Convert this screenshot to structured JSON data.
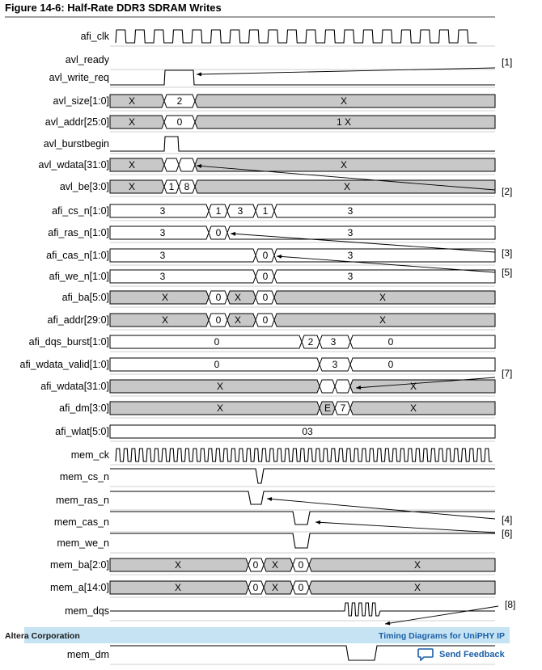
{
  "figure": {
    "title": "Figure 14-6: Half-Rate DDR3 SDRAM Writes"
  },
  "colors": {
    "bus_fill": "#c8c8c8",
    "line": "#000000",
    "banner": "#c5e3f3",
    "link": "#1a5fa8"
  },
  "signals": [
    {
      "name": "afi_clk",
      "type": "clock"
    },
    {
      "name": "avl_ready",
      "type": "none"
    },
    {
      "name": "avl_write_req",
      "type": "pulse"
    },
    {
      "name": "avl_size[1:0]",
      "type": "bus",
      "values": [
        "X",
        "2",
        "X"
      ]
    },
    {
      "name": "avl_addr[25:0]",
      "type": "bus",
      "values": [
        "X",
        "0",
        "1 X"
      ]
    },
    {
      "name": "avl_burstbegin",
      "type": "pulse"
    },
    {
      "name": "avl_wdata[31:0]",
      "type": "bus",
      "values": [
        "X",
        "",
        "",
        "X"
      ]
    },
    {
      "name": "avl_be[3:0]",
      "type": "bus",
      "values": [
        "X",
        "1",
        "8",
        "X"
      ]
    },
    {
      "name": "afi_cs_n[1:0]",
      "type": "bus",
      "values": [
        "3",
        "1",
        "3",
        "1",
        "3"
      ]
    },
    {
      "name": "afi_ras_n[1:0]",
      "type": "bus",
      "values": [
        "3",
        "0",
        "3"
      ]
    },
    {
      "name": "afi_cas_n[1:0]",
      "type": "bus",
      "values": [
        "3",
        "0",
        "3"
      ]
    },
    {
      "name": "afi_we_n[1:0]",
      "type": "bus",
      "values": [
        "3",
        "0",
        "3"
      ]
    },
    {
      "name": "afi_ba[5:0]",
      "type": "bus",
      "values": [
        "X",
        "0",
        "X",
        "0",
        "X"
      ]
    },
    {
      "name": "afi_addr[29:0]",
      "type": "bus",
      "values": [
        "X",
        "0",
        "X",
        "0",
        "X"
      ]
    },
    {
      "name": "afi_dqs_burst[1:0]",
      "type": "bus",
      "values": [
        "0",
        "2",
        "3",
        "0"
      ]
    },
    {
      "name": "afi_wdata_valid[1:0]",
      "type": "bus",
      "values": [
        "0",
        "3",
        "0"
      ]
    },
    {
      "name": "afi_wdata[31:0]",
      "type": "bus",
      "values": [
        "X",
        "",
        "",
        "X"
      ]
    },
    {
      "name": "afi_dm[3:0]",
      "type": "bus",
      "values": [
        "X",
        "E",
        "7",
        "X"
      ]
    },
    {
      "name": "afi_wlat[5:0]",
      "type": "bus",
      "values": [
        "03"
      ]
    },
    {
      "name": "mem_ck",
      "type": "clock"
    },
    {
      "name": "mem_cs_n",
      "type": "pulse"
    },
    {
      "name": "mem_ras_n",
      "type": "pulse"
    },
    {
      "name": "mem_cas_n",
      "type": "pulse"
    },
    {
      "name": "mem_we_n",
      "type": "pulse"
    },
    {
      "name": "mem_ba[2:0]",
      "type": "bus",
      "values": [
        "X",
        "0",
        "X",
        "0",
        "X"
      ]
    },
    {
      "name": "mem_a[14:0]",
      "type": "bus",
      "values": [
        "X",
        "0",
        "X",
        "0",
        "X"
      ]
    },
    {
      "name": "mem_dqs",
      "type": "strobe"
    },
    {
      "name": "mem_",
      "type": "partial"
    },
    {
      "name": "mem_dm",
      "type": "pulse"
    }
  ],
  "refs": [
    "[1]",
    "[2]",
    "[3]",
    "[5]",
    "[7]",
    "[4]",
    "[6]",
    "[8]"
  ],
  "footer": {
    "left": "Altera Corporation",
    "right": "Timing Diagrams for UniPHY IP",
    "feedback": "Send Feedback"
  }
}
